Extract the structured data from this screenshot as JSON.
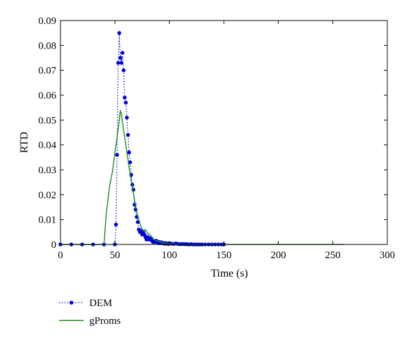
{
  "chart_data": {
    "type": "line",
    "title": "",
    "xlabel": "Time (s)",
    "ylabel": "RTD",
    "xlim": [
      0,
      300
    ],
    "ylim": [
      0,
      0.09
    ],
    "xticks": [
      "0",
      "50",
      "100",
      "150",
      "200",
      "250",
      "300"
    ],
    "yticks": [
      "0",
      "0.01",
      "0.02",
      "0.03",
      "0.04",
      "0.05",
      "0.06",
      "0.07",
      "0.08",
      "0.09"
    ],
    "grid": false,
    "legend_position": "bottom-left",
    "series": [
      {
        "name": "DEM",
        "style": "dotted-with-markers",
        "color": "#0000dd",
        "x": [
          0,
          10,
          20,
          30,
          40,
          50,
          51,
          52,
          53,
          54,
          55,
          56,
          57,
          58,
          59,
          60,
          61,
          62,
          63,
          64,
          65,
          66,
          67,
          68,
          69,
          70,
          71,
          72,
          73,
          74,
          75,
          76,
          77,
          78,
          79,
          80,
          81,
          82,
          83,
          84,
          85,
          86,
          87,
          88,
          89,
          90,
          91,
          92,
          93,
          94,
          95,
          96,
          97,
          98,
          99,
          100,
          102,
          104,
          106,
          108,
          110,
          112,
          114,
          116,
          118,
          120,
          122,
          124,
          126,
          128,
          130,
          133,
          136,
          139,
          142,
          145,
          148,
          150
        ],
        "y": [
          0,
          0,
          0,
          0,
          0,
          0,
          0.008,
          0.036,
          0.073,
          0.085,
          0.075,
          0.073,
          0.077,
          0.07,
          0.059,
          0.057,
          0.051,
          0.044,
          0.037,
          0.033,
          0.028,
          0.024,
          0.022,
          0.016,
          0.014,
          0.011,
          0.009,
          0.006,
          0.005,
          0.0055,
          0.004,
          0.005,
          0.004,
          0.003,
          0.002,
          0.003,
          0.002,
          0.0025,
          0.002,
          0.0015,
          0.001,
          0.0012,
          0.001,
          0.0015,
          0.001,
          0.0005,
          0.001,
          0.0005,
          0.0008,
          0.0005,
          0.0003,
          0.0006,
          0.0003,
          0.0004,
          0.0002,
          0.0005,
          0.0003,
          0.0002,
          0.0004,
          0.0002,
          0.0001,
          0.0002,
          0.0001,
          0.0001,
          0,
          0.0001,
          0,
          0,
          0,
          0,
          0,
          0,
          0,
          0,
          0,
          0,
          0,
          0
        ]
      },
      {
        "name": "gProms",
        "style": "solid",
        "color": "#1a8a1a",
        "x": [
          0,
          40,
          42,
          45,
          48,
          50,
          52,
          54,
          55,
          56,
          58,
          60,
          62,
          64,
          66,
          68,
          70,
          72,
          74,
          76,
          78,
          80,
          82,
          84,
          86,
          88,
          90,
          92,
          95,
          100,
          105,
          110,
          120,
          130,
          150,
          200,
          260
        ],
        "y": [
          0,
          0,
          0.012,
          0.023,
          0.03,
          0.037,
          0.043,
          0.05,
          0.054,
          0.052,
          0.046,
          0.04,
          0.034,
          0.028,
          0.023,
          0.018,
          0.013,
          0.01,
          0.007,
          0.0055,
          0.006,
          0.0045,
          0.004,
          0.003,
          0.002,
          0.0015,
          0.0012,
          0.001,
          0.0006,
          0.0003,
          0.0002,
          0.0001,
          0,
          0,
          0,
          0,
          0
        ]
      }
    ]
  }
}
